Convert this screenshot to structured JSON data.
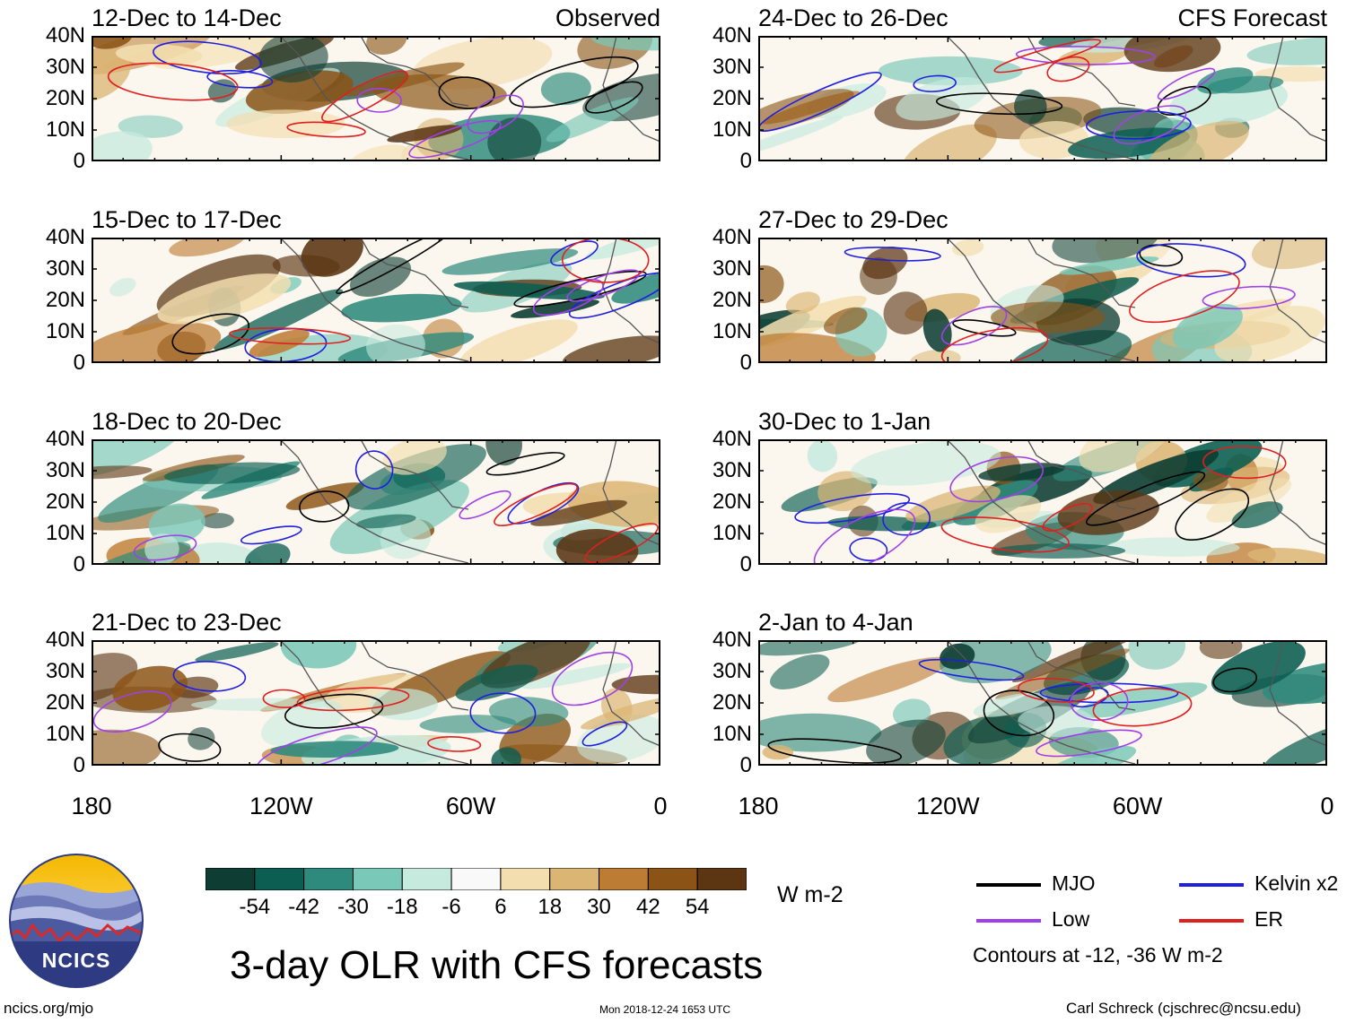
{
  "panels": [
    {
      "title": "12-Dec to 14-Dec",
      "tag": "Observed"
    },
    {
      "title": "24-Dec to 26-Dec",
      "tag": "CFS Forecast"
    },
    {
      "title": "15-Dec to 17-Dec",
      "tag": ""
    },
    {
      "title": "27-Dec to 29-Dec",
      "tag": ""
    },
    {
      "title": "18-Dec to 20-Dec",
      "tag": ""
    },
    {
      "title": "30-Dec to 1-Jan",
      "tag": ""
    },
    {
      "title": "21-Dec to 23-Dec",
      "tag": ""
    },
    {
      "title": "2-Jan to 4-Jan",
      "tag": ""
    }
  ],
  "lat_labels": [
    "40N",
    "30N",
    "20N",
    "10N",
    "0"
  ],
  "lon_labels": [
    "180",
    "120W",
    "60W",
    "0"
  ],
  "colorbar": {
    "colors": [
      "#0d3d33",
      "#0d5e52",
      "#2e8a7d",
      "#7ac8b8",
      "#c7eadf",
      "#f9f9f9",
      "#f3deb0",
      "#dbb574",
      "#bd7c33",
      "#8b5416",
      "#5c3613"
    ],
    "labels": [
      "-54",
      "-42",
      "-30",
      "-18",
      "-6",
      "6",
      "18",
      "30",
      "42",
      "54"
    ],
    "units": "W m-2"
  },
  "title": "3-day OLR with CFS forecasts",
  "legend": {
    "items": [
      {
        "label": "MJO",
        "color": "#000000"
      },
      {
        "label": "Kelvin x2",
        "color": "#1f1fe0"
      },
      {
        "label": "Low",
        "color": "#a040e8"
      },
      {
        "label": "ER",
        "color": "#e01f1f"
      }
    ],
    "note": "Contours at -12, -36 W m-2"
  },
  "logo": {
    "text": "NCICS"
  },
  "footer": {
    "left": "ncics.org/mjo",
    "center": "Mon 2018-12-24 1653 UTC",
    "right": "Carl Schreck (cjschrec@ncsu.edu)"
  }
}
